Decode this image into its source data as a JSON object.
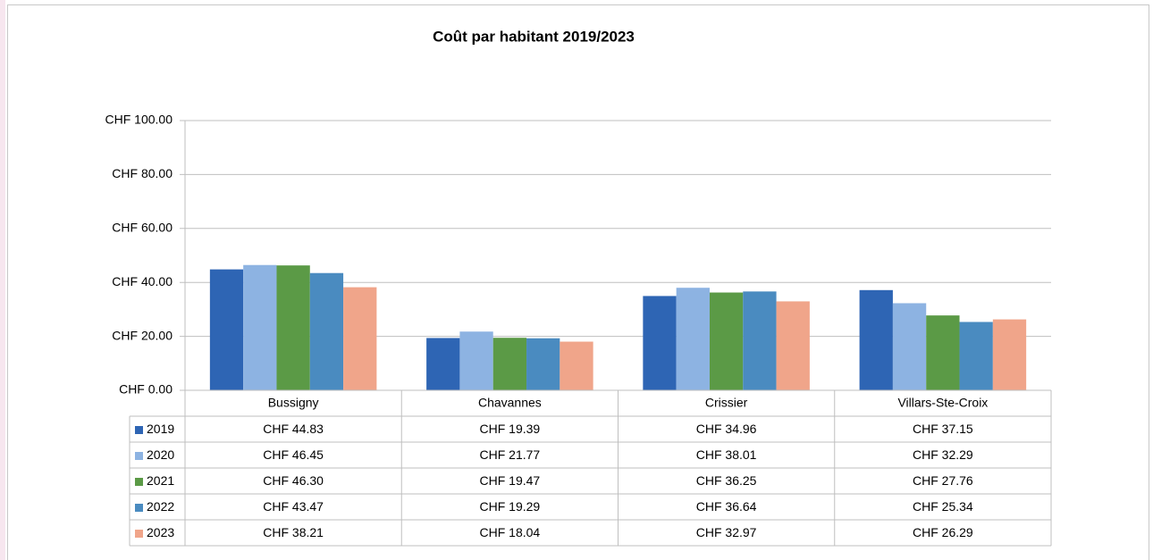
{
  "chart_data": {
    "type": "bar",
    "title": "Coût par habitant 2019/2023",
    "categories": [
      "Bussigny",
      "Chavannes",
      "Crissier",
      "Villars-Ste-Croix"
    ],
    "series": [
      {
        "name": "2019",
        "color": "#2e65b4",
        "values": [
          44.83,
          19.39,
          34.96,
          37.15
        ],
        "value_labels": [
          "CHF 44.83",
          "CHF 19.39",
          "CHF 34.96",
          "CHF 37.15"
        ]
      },
      {
        "name": "2020",
        "color": "#8db3e2",
        "values": [
          46.45,
          21.77,
          38.01,
          32.29
        ],
        "value_labels": [
          "CHF 46.45",
          "CHF 21.77",
          "CHF 38.01",
          "CHF 32.29"
        ]
      },
      {
        "name": "2021",
        "color": "#5b9a46",
        "values": [
          46.3,
          19.47,
          36.25,
          27.76
        ],
        "value_labels": [
          "CHF 46.30",
          "CHF 19.47",
          "CHF 36.25",
          "CHF 27.76"
        ]
      },
      {
        "name": "2022",
        "color": "#4a8bc0",
        "values": [
          43.47,
          19.29,
          36.64,
          25.34
        ],
        "value_labels": [
          "CHF 43.47",
          "CHF 19.29",
          "CHF 36.64",
          "CHF 25.34"
        ]
      },
      {
        "name": "2023",
        "color": "#f0a58a",
        "values": [
          38.21,
          18.04,
          32.97,
          26.29
        ],
        "value_labels": [
          "CHF 38.21",
          "CHF 18.04",
          "CHF 32.97",
          "CHF 26.29"
        ]
      }
    ],
    "ylim": [
      0,
      100
    ],
    "yticks": [
      {
        "value": 0,
        "label": "CHF 0.00"
      },
      {
        "value": 20,
        "label": "CHF 20.00"
      },
      {
        "value": 40,
        "label": "CHF 40.00"
      },
      {
        "value": 60,
        "label": "CHF 60.00"
      },
      {
        "value": 80,
        "label": "CHF 80.00"
      },
      {
        "value": 100,
        "label": "CHF 100.00"
      }
    ],
    "grid": true
  }
}
